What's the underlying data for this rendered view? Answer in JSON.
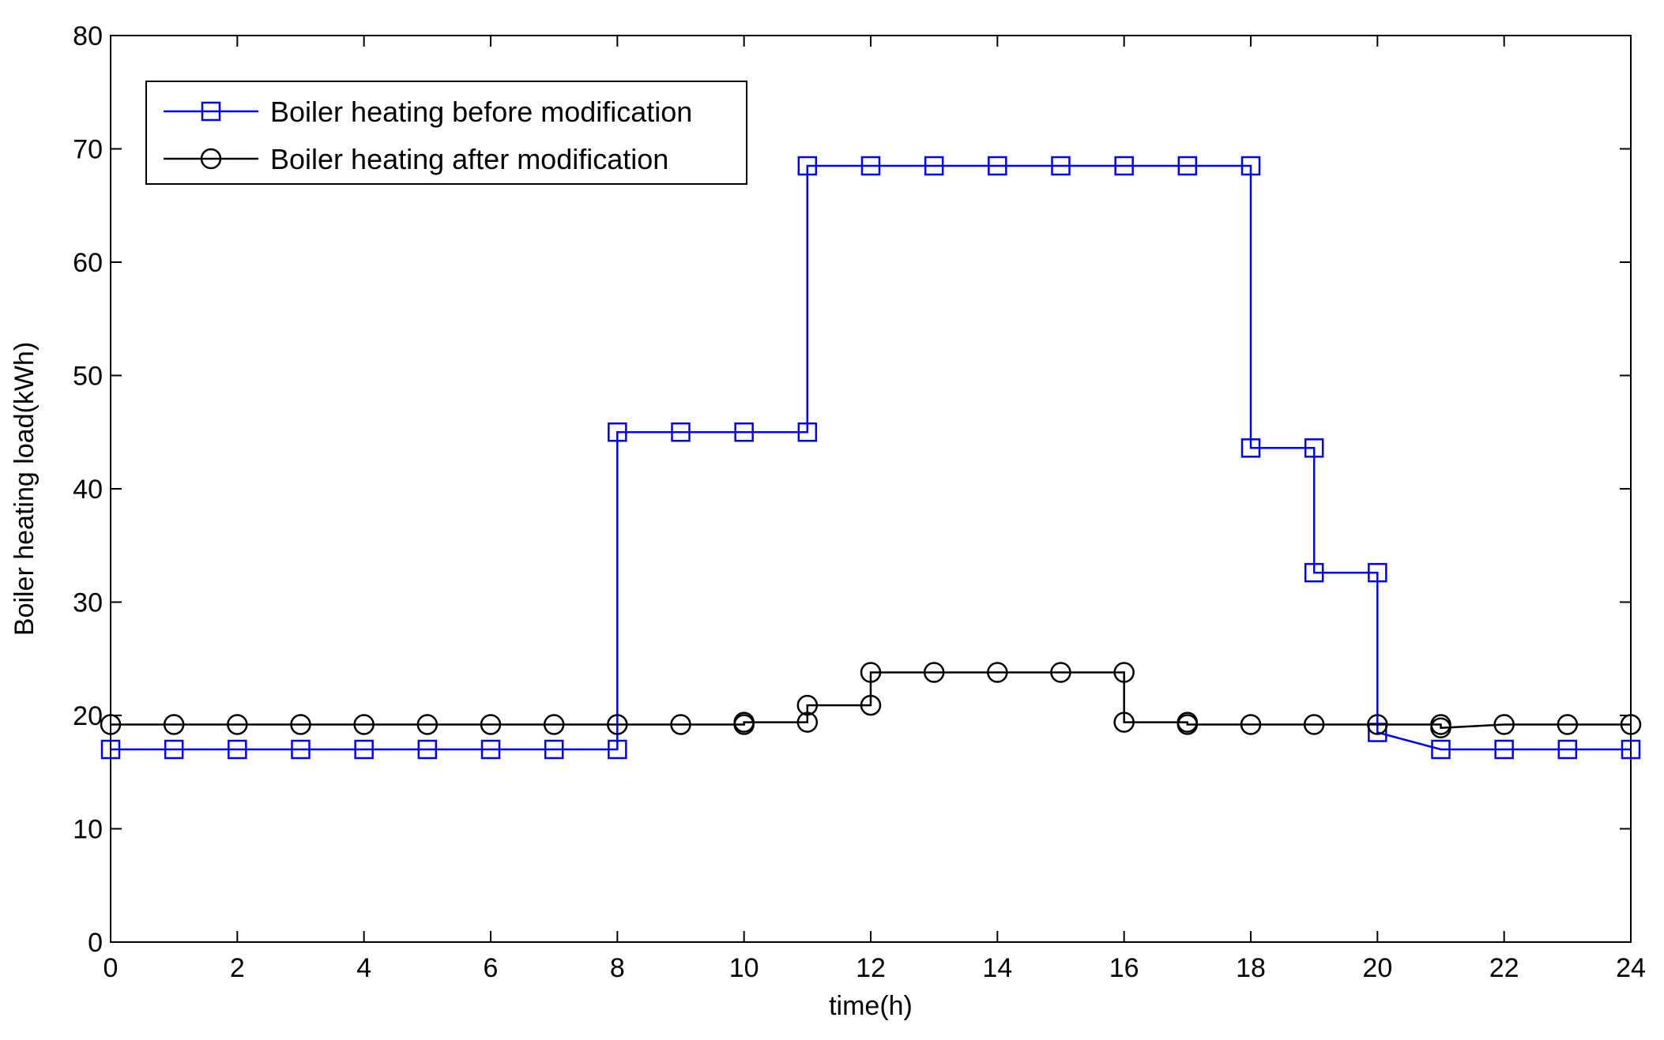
{
  "chart_data": {
    "type": "line",
    "step": true,
    "xlabel": "time(h)",
    "ylabel": "Boiler heating load(kWh)",
    "xlim": [
      0,
      24
    ],
    "ylim": [
      0,
      80
    ],
    "xticks": [
      0,
      2,
      4,
      6,
      8,
      10,
      12,
      14,
      16,
      18,
      20,
      22,
      24
    ],
    "yticks": [
      0,
      10,
      20,
      30,
      40,
      50,
      60,
      70,
      80
    ],
    "grid": false,
    "legend_position": "top-left",
    "series": [
      {
        "name": "Boiler heating before modification",
        "color": "#0000ff",
        "marker": "square",
        "x": [
          0,
          1,
          2,
          3,
          4,
          5,
          6,
          7,
          8,
          8,
          9,
          10,
          11,
          11,
          12,
          13,
          14,
          15,
          16,
          17,
          18,
          18,
          19,
          19,
          20,
          20,
          21,
          22,
          23,
          24
        ],
        "y": [
          17,
          17,
          17,
          17,
          17,
          17,
          17,
          17,
          17,
          45,
          45,
          45,
          45,
          68.5,
          68.5,
          68.5,
          68.5,
          68.5,
          68.5,
          68.5,
          68.5,
          43.6,
          43.6,
          32.6,
          32.6,
          18.5,
          17,
          17,
          17,
          17
        ]
      },
      {
        "name": "Boiler heating after modification",
        "color": "#000000",
        "marker": "circle",
        "x": [
          0,
          1,
          2,
          3,
          4,
          5,
          6,
          7,
          8,
          9,
          10,
          10,
          11,
          11,
          12,
          12,
          13,
          14,
          15,
          16,
          16,
          17,
          17,
          18,
          19,
          20,
          21,
          21,
          22,
          23,
          24
        ],
        "y": [
          19.2,
          19.2,
          19.2,
          19.2,
          19.2,
          19.2,
          19.2,
          19.2,
          19.2,
          19.2,
          19.2,
          19.4,
          19.4,
          20.9,
          20.9,
          23.8,
          23.8,
          23.8,
          23.8,
          23.8,
          19.4,
          19.4,
          19.2,
          19.2,
          19.2,
          19.2,
          19.2,
          18.9,
          19.2,
          19.2,
          19.2
        ]
      }
    ]
  }
}
